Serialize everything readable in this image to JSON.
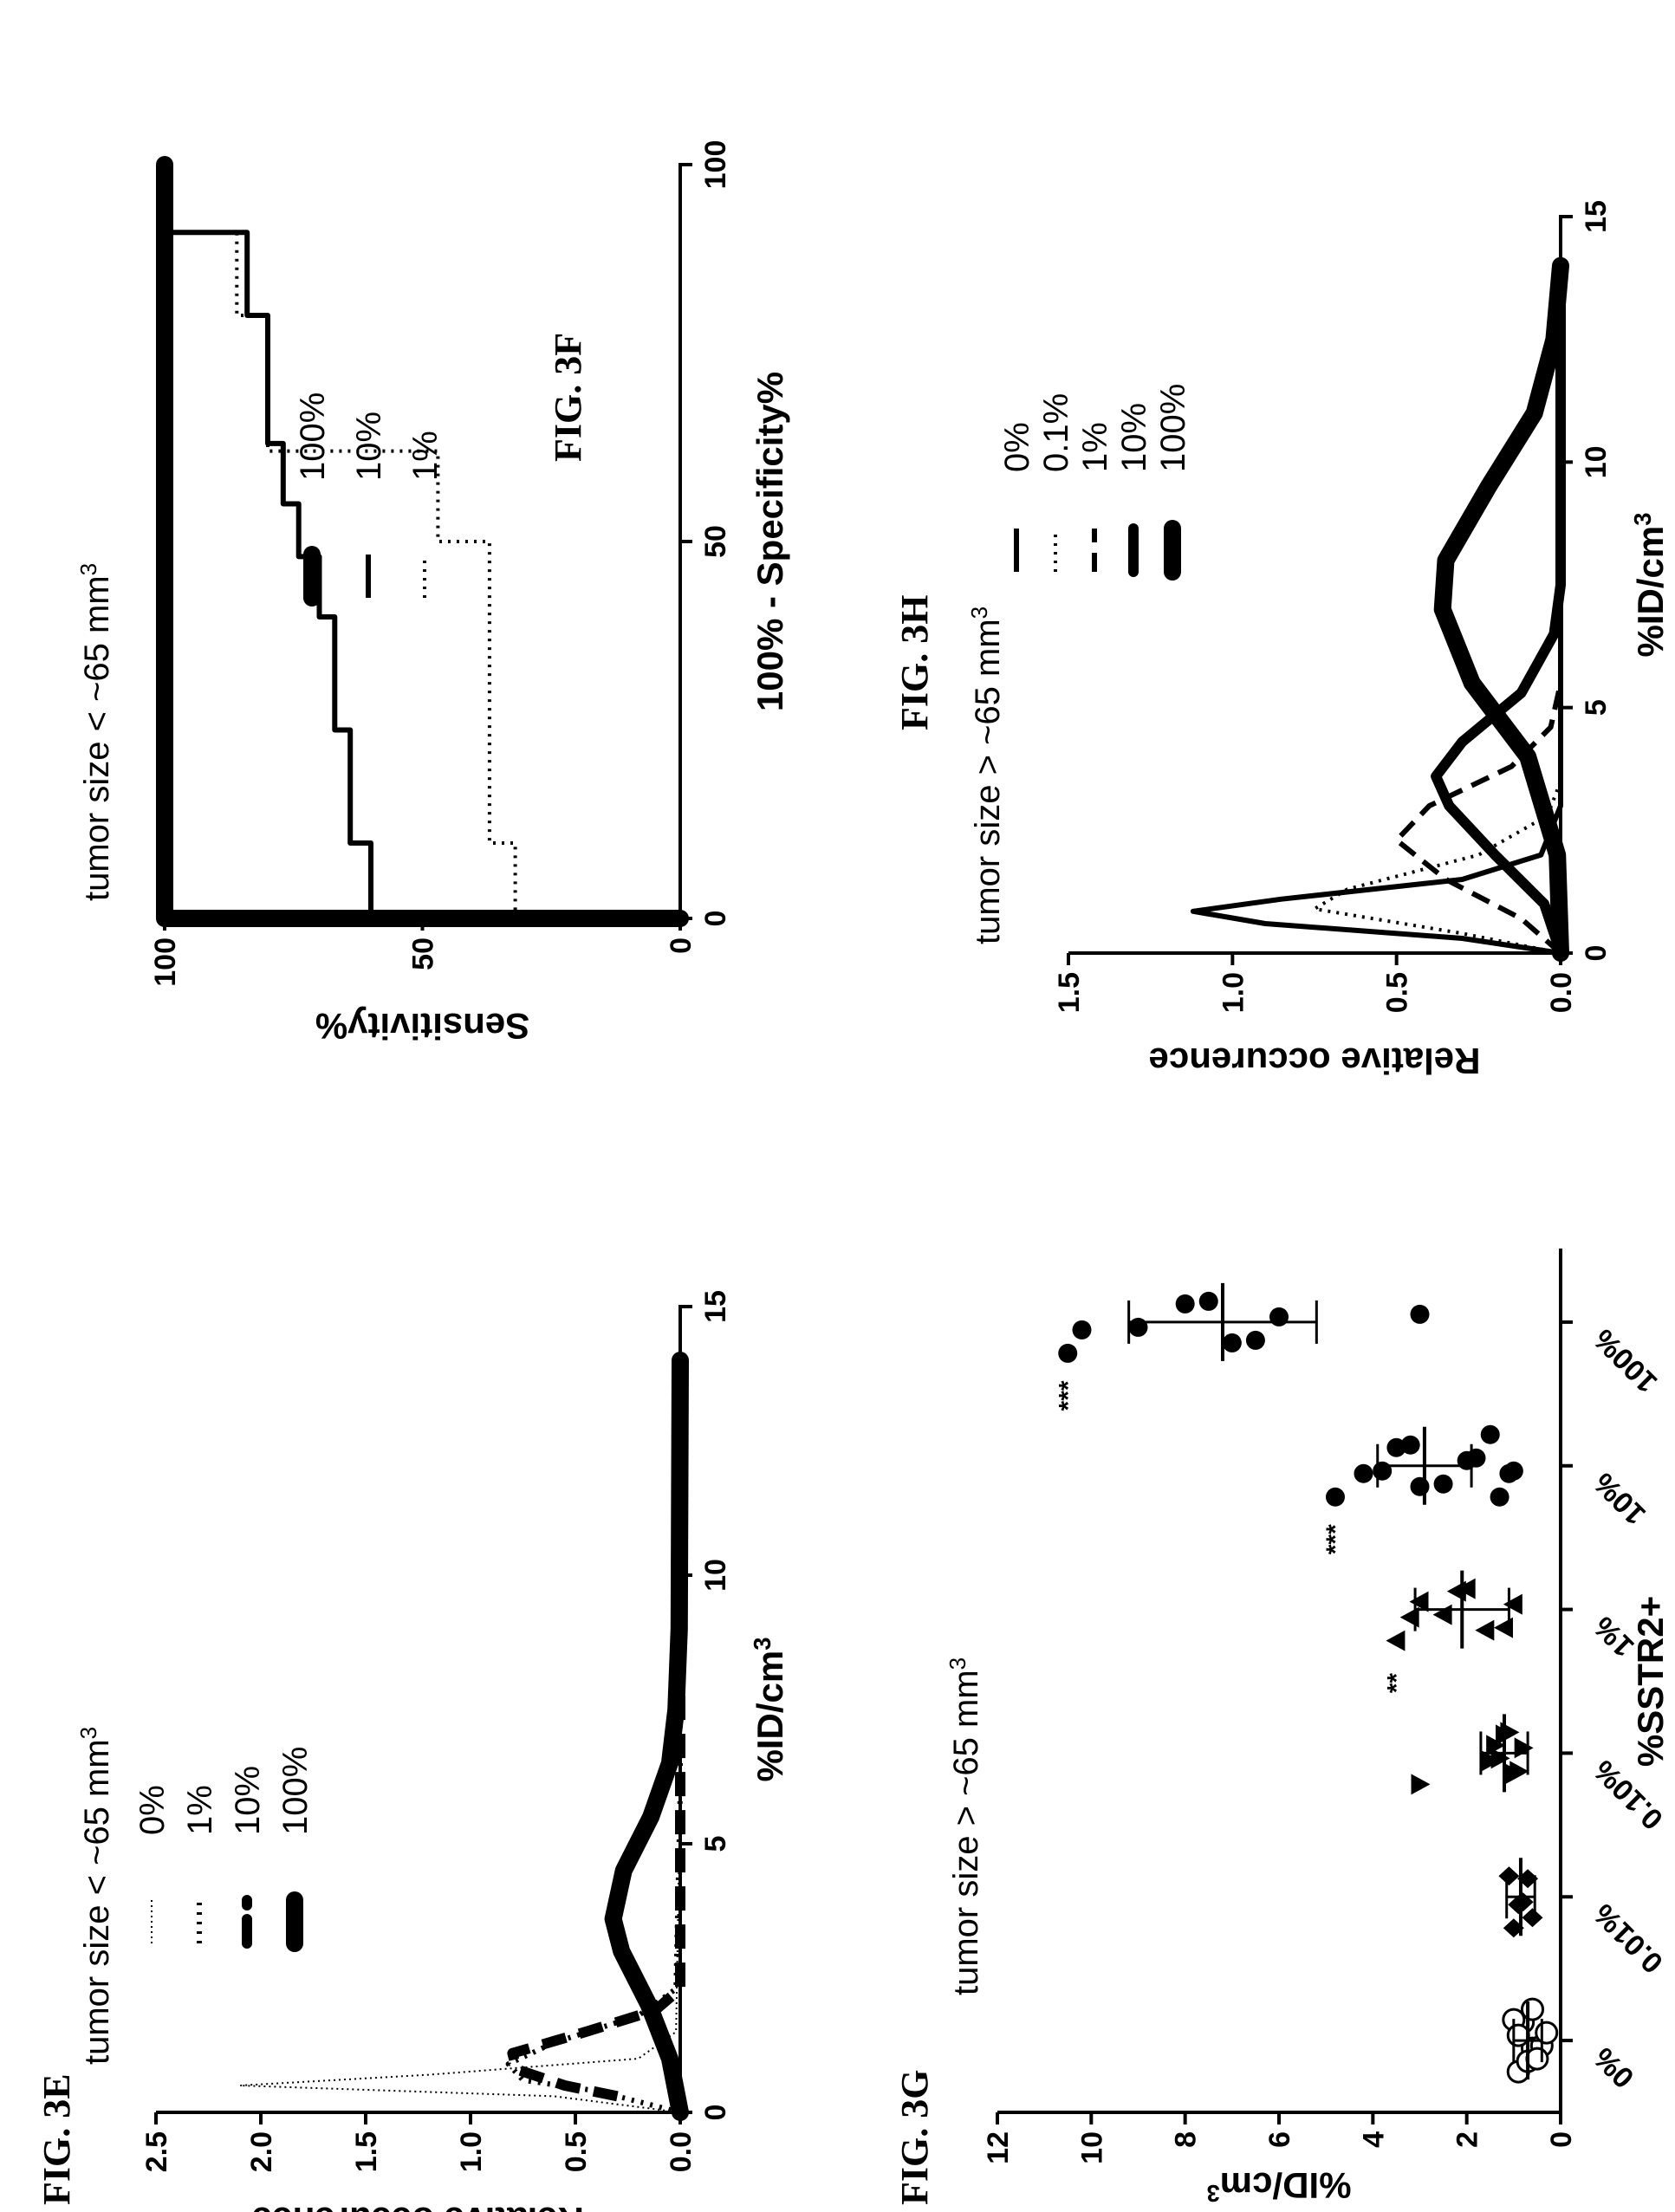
{
  "figure_labels": {
    "e": "FIG. 3E",
    "f": "FIG. 3F",
    "g": "FIG. 3G",
    "h": "FIG. 3H"
  },
  "chart_data": [
    {
      "id": "3E",
      "type": "line",
      "annotation": "tumor size < ~65 mm",
      "annotation_sup": "3",
      "xlabel": "%ID/cm",
      "xlabel_sup": "3",
      "ylabel": "Relative occurence",
      "xlim": [
        0,
        15
      ],
      "ylim": [
        0,
        2.5
      ],
      "xticks": [
        "0",
        "5",
        "10",
        "15"
      ],
      "yticks": [
        "0.0",
        "0.5",
        "1.0",
        "1.5",
        "2.0",
        "2.5"
      ],
      "legend_position": "right",
      "series": [
        {
          "name": "0%",
          "style": "dotted-thin",
          "points": [
            [
              0,
              0
            ],
            [
              0.3,
              0.6
            ],
            [
              0.5,
              2.1
            ],
            [
              0.7,
              1.2
            ],
            [
              1.0,
              0.2
            ],
            [
              1.5,
              0.02
            ],
            [
              6,
              0
            ],
            [
              14,
              0
            ]
          ]
        },
        {
          "name": "1%",
          "style": "dotted-thick",
          "points": [
            [
              0,
              0
            ],
            [
              0.4,
              0.4
            ],
            [
              0.6,
              0.75
            ],
            [
              0.9,
              0.82
            ],
            [
              1.3,
              0.6
            ],
            [
              1.8,
              0.2
            ],
            [
              2.3,
              0.02
            ],
            [
              6,
              0
            ],
            [
              14,
              0
            ]
          ]
        },
        {
          "name": "10%",
          "style": "dashed-bold",
          "points": [
            [
              0.3,
              0.3
            ],
            [
              0.5,
              0.55
            ],
            [
              0.8,
              0.78
            ],
            [
              1.1,
              0.8
            ],
            [
              1.5,
              0.45
            ],
            [
              1.9,
              0.12
            ],
            [
              2.3,
              0.0
            ],
            [
              14,
              0
            ]
          ]
        },
        {
          "name": "100%",
          "style": "solid-heavy",
          "points": [
            [
              0,
              0
            ],
            [
              1,
              0.05
            ],
            [
              2,
              0.15
            ],
            [
              3,
              0.28
            ],
            [
              3.6,
              0.32
            ],
            [
              4.5,
              0.27
            ],
            [
              5.5,
              0.14
            ],
            [
              6.5,
              0.05
            ],
            [
              7.5,
              0.02
            ],
            [
              9,
              0.005
            ],
            [
              14,
              0
            ]
          ]
        }
      ]
    },
    {
      "id": "3F",
      "type": "line",
      "annotation": "tumor size < ~65 mm",
      "annotation_sup": "3",
      "xlabel": "100% - Specificity%",
      "ylabel": "Sensitivity%",
      "xlim": [
        0,
        100
      ],
      "ylim": [
        0,
        100
      ],
      "xticks": [
        "0",
        "50",
        "100"
      ],
      "yticks": [
        "0",
        "50",
        "100"
      ],
      "legend_position": "right",
      "series": [
        {
          "name": "100%",
          "style": "solid-heavy",
          "points": [
            [
              0,
              0
            ],
            [
              0,
              100
            ],
            [
              100,
              100
            ]
          ]
        },
        {
          "name": "10%",
          "style": "solid",
          "points": [
            [
              0,
              0
            ],
            [
              0,
              60
            ],
            [
              10,
              60
            ],
            [
              10,
              64
            ],
            [
              25,
              64
            ],
            [
              25,
              67
            ],
            [
              40,
              67
            ],
            [
              40,
              70
            ],
            [
              48,
              70
            ],
            [
              48,
              74
            ],
            [
              55,
              74
            ],
            [
              55,
              77
            ],
            [
              63,
              77
            ],
            [
              63,
              80
            ],
            [
              80,
              80
            ],
            [
              80,
              84
            ],
            [
              91,
              84
            ],
            [
              91,
              100
            ],
            [
              100,
              100
            ]
          ]
        },
        {
          "name": "1%",
          "style": "dotted",
          "points": [
            [
              0,
              0
            ],
            [
              0,
              32
            ],
            [
              10,
              32
            ],
            [
              10,
              37
            ],
            [
              50,
              37
            ],
            [
              50,
              47
            ],
            [
              62,
              47
            ],
            [
              62,
              80
            ],
            [
              80,
              80
            ],
            [
              80,
              86
            ],
            [
              91,
              86
            ],
            [
              91,
              100
            ],
            [
              100,
              100
            ]
          ]
        }
      ]
    },
    {
      "id": "3G",
      "type": "scatter",
      "annotation": "tumor size > ~65 mm",
      "annotation_sup": "3",
      "xlabel": "%SSTR2+",
      "ylabel": "%ID/cm",
      "ylabel_sup": "3",
      "ylim": [
        0,
        12
      ],
      "yticks": [
        "0",
        "2",
        "4",
        "6",
        "8",
        "10",
        "12"
      ],
      "categories": [
        "0%",
        "0.01%",
        "0.10%",
        "1%",
        "10%",
        "100%"
      ],
      "markers": [
        "open-circle",
        "diamond",
        "down-triangle",
        "up-triangle",
        "filled-circle",
        "filled-circle"
      ],
      "points": [
        [
          0.9,
          0.6,
          0.4,
          0.8,
          1.0,
          0.7,
          0.5,
          0.9,
          0.3,
          0.6
        ],
        [
          1.0,
          0.9,
          0.8,
          0.7,
          1.1,
          0.6
        ],
        [
          3.0,
          1.5,
          1.3,
          1.2,
          1.1,
          1.0,
          0.9,
          0.8,
          1.4
        ],
        [
          3.5,
          3.2,
          2.5,
          2.2,
          2.0,
          1.6,
          1.2,
          1.0,
          3.0
        ],
        [
          4.8,
          4.2,
          3.8,
          3.5,
          3.2,
          3.0,
          2.5,
          2.0,
          1.8,
          1.5,
          1.3,
          1.1,
          1.0
        ],
        [
          10.5,
          10.2,
          9.0,
          8.0,
          7.5,
          7.0,
          6.5,
          6.0,
          3.0
        ]
      ],
      "means": [
        0.7,
        0.85,
        1.2,
        2.1,
        2.9,
        7.2
      ],
      "errors": [
        0.3,
        0.3,
        0.5,
        1.0,
        1.0,
        2.0
      ],
      "significance": [
        "",
        "",
        "",
        "**",
        "***",
        "***"
      ]
    },
    {
      "id": "3H",
      "type": "line",
      "annotation": "tumor size > ~65 mm",
      "annotation_sup": "3",
      "xlabel": "%ID/cm",
      "xlabel_sup": "3",
      "ylabel": "Relative occurence",
      "xlim": [
        0,
        15
      ],
      "ylim": [
        0,
        1.5
      ],
      "xticks": [
        "0",
        "5",
        "10",
        "15"
      ],
      "yticks": [
        "0.0",
        "0.5",
        "1.0",
        "1.5"
      ],
      "legend_position": "right",
      "series": [
        {
          "name": "0%",
          "style": "solid",
          "points": [
            [
              0,
              0
            ],
            [
              0.3,
              0.3
            ],
            [
              0.6,
              0.9
            ],
            [
              0.85,
              1.12
            ],
            [
              1.1,
              0.85
            ],
            [
              1.5,
              0.3
            ],
            [
              2,
              0.06
            ],
            [
              3,
              0
            ],
            [
              14,
              0
            ]
          ]
        },
        {
          "name": "0.1%",
          "style": "dotted",
          "points": [
            [
              0,
              0
            ],
            [
              0.4,
              0.3
            ],
            [
              0.9,
              0.75
            ],
            [
              1.3,
              0.65
            ],
            [
              2,
              0.25
            ],
            [
              2.8,
              0.04
            ],
            [
              3.5,
              0
            ],
            [
              14,
              0
            ]
          ]
        },
        {
          "name": "1%",
          "style": "dashed",
          "points": [
            [
              0,
              0
            ],
            [
              0.7,
              0.12
            ],
            [
              1.5,
              0.35
            ],
            [
              2.3,
              0.5
            ],
            [
              3.0,
              0.4
            ],
            [
              3.8,
              0.15
            ],
            [
              4.6,
              0.03
            ],
            [
              5.5,
              0
            ],
            [
              14,
              0
            ]
          ]
        },
        {
          "name": "10%",
          "style": "solid-bold",
          "points": [
            [
              0,
              0
            ],
            [
              1,
              0.05
            ],
            [
              2,
              0.2
            ],
            [
              3,
              0.34
            ],
            [
              3.6,
              0.38
            ],
            [
              4.3,
              0.3
            ],
            [
              5.3,
              0.12
            ],
            [
              6.5,
              0.02
            ],
            [
              7.5,
              0
            ],
            [
              14,
              0
            ]
          ]
        },
        {
          "name": "100%",
          "style": "solid-heavy",
          "points": [
            [
              0,
              0
            ],
            [
              2,
              0.01
            ],
            [
              4,
              0.1
            ],
            [
              5.5,
              0.27
            ],
            [
              7,
              0.36
            ],
            [
              8,
              0.35
            ],
            [
              9.5,
              0.22
            ],
            [
              11,
              0.08
            ],
            [
              12.5,
              0.02
            ],
            [
              14,
              0
            ]
          ]
        }
      ]
    }
  ]
}
